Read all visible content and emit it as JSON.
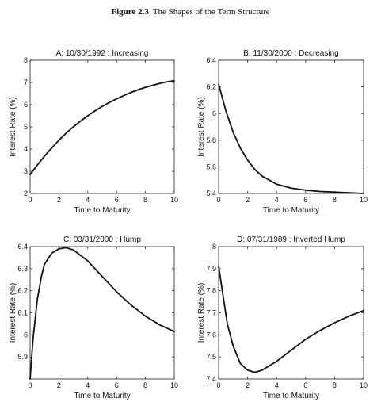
{
  "figure": {
    "number": "Figure 2.3",
    "caption": "The Shapes of the Term Structure"
  },
  "chart_data": [
    {
      "type": "line",
      "title": "A: 10/30/1992 : Increasing",
      "xlabel": "Time to Maturity",
      "ylabel": "Interest Rate (%)",
      "xlim": [
        0,
        10
      ],
      "ylim": [
        2,
        8
      ],
      "xticks": [
        0,
        2,
        4,
        6,
        8,
        10
      ],
      "yticks": [
        2,
        3,
        4,
        5,
        6,
        7,
        8
      ],
      "yticklabels": [
        "2",
        "3",
        "4",
        "5",
        "6",
        "7",
        "8"
      ],
      "grid": false,
      "series": [
        {
          "x": [
            0,
            0.5,
            1,
            1.5,
            2,
            2.5,
            3,
            3.5,
            4,
            4.5,
            5,
            5.5,
            6,
            6.5,
            7,
            7.5,
            8,
            8.5,
            9,
            9.5,
            10
          ],
          "y": [
            2.85,
            3.28,
            3.68,
            4.05,
            4.4,
            4.72,
            5.0,
            5.26,
            5.5,
            5.72,
            5.92,
            6.1,
            6.26,
            6.41,
            6.55,
            6.67,
            6.78,
            6.87,
            6.96,
            7.03,
            7.08
          ]
        }
      ]
    },
    {
      "type": "line",
      "title": "B: 11/30/2000 : Decreasing",
      "xlabel": "Time to Maturity",
      "ylabel": "Interest Rate (%)",
      "xlim": [
        0,
        10
      ],
      "ylim": [
        5.4,
        6.4
      ],
      "xticks": [
        0,
        2,
        4,
        6,
        8,
        10
      ],
      "yticks": [
        5.4,
        5.6,
        5.8,
        6.0,
        6.2,
        6.4
      ],
      "yticklabels": [
        "5.4",
        "5.6",
        "5.8",
        "6",
        "6.2",
        "6.4"
      ],
      "grid": false,
      "series": [
        {
          "x": [
            0,
            0.5,
            1,
            1.5,
            2,
            2.5,
            3,
            3.5,
            4,
            5,
            6,
            7,
            8,
            9,
            10
          ],
          "y": [
            6.22,
            6.02,
            5.86,
            5.74,
            5.65,
            5.58,
            5.53,
            5.5,
            5.47,
            5.44,
            5.425,
            5.415,
            5.41,
            5.405,
            5.4
          ]
        }
      ]
    },
    {
      "type": "line",
      "title": "C: 03/31/2000 : Hump",
      "xlabel": "Time to Maturity",
      "ylabel": "Interest Rate (%)",
      "xlim": [
        0,
        10
      ],
      "ylim": [
        5.8,
        6.4
      ],
      "xticks": [
        0,
        2,
        4,
        6,
        8,
        10
      ],
      "yticks": [
        5.9,
        6.0,
        6.1,
        6.2,
        6.3,
        6.4
      ],
      "yticklabels": [
        "5.9",
        "6",
        "6.1",
        "6.2",
        "6.3",
        "6.4"
      ],
      "grid": false,
      "series": [
        {
          "x": [
            0,
            0.2,
            0.5,
            0.8,
            1,
            1.5,
            2,
            2.5,
            3,
            3.5,
            4,
            4.5,
            5,
            5.5,
            6,
            6.5,
            7,
            7.5,
            8,
            8.5,
            9,
            9.5,
            10
          ],
          "y": [
            5.8,
            5.98,
            6.16,
            6.27,
            6.32,
            6.37,
            6.39,
            6.395,
            6.385,
            6.36,
            6.335,
            6.3,
            6.265,
            6.23,
            6.195,
            6.165,
            6.135,
            6.11,
            6.085,
            6.065,
            6.045,
            6.03,
            6.015
          ]
        }
      ]
    },
    {
      "type": "line",
      "title": "D: 07/31/1989 : Inverted Hump",
      "xlabel": "Time to Maturity",
      "ylabel": "Interest Rate (%)",
      "xlim": [
        0,
        10
      ],
      "ylim": [
        7.4,
        8.0
      ],
      "xticks": [
        0,
        2,
        4,
        6,
        8,
        10
      ],
      "yticks": [
        7.4,
        7.5,
        7.6,
        7.7,
        7.8,
        7.9,
        8.0
      ],
      "yticklabels": [
        "7.4",
        "7.5",
        "7.6",
        "7.7",
        "7.8",
        "7.9",
        "8"
      ],
      "grid": false,
      "series": [
        {
          "x": [
            0,
            0.3,
            0.6,
            1,
            1.5,
            2,
            2.5,
            3,
            3.5,
            4,
            5,
            6,
            7,
            8,
            9,
            10
          ],
          "y": [
            7.91,
            7.78,
            7.65,
            7.55,
            7.47,
            7.44,
            7.43,
            7.44,
            7.46,
            7.48,
            7.53,
            7.58,
            7.62,
            7.655,
            7.685,
            7.71
          ]
        }
      ]
    }
  ]
}
